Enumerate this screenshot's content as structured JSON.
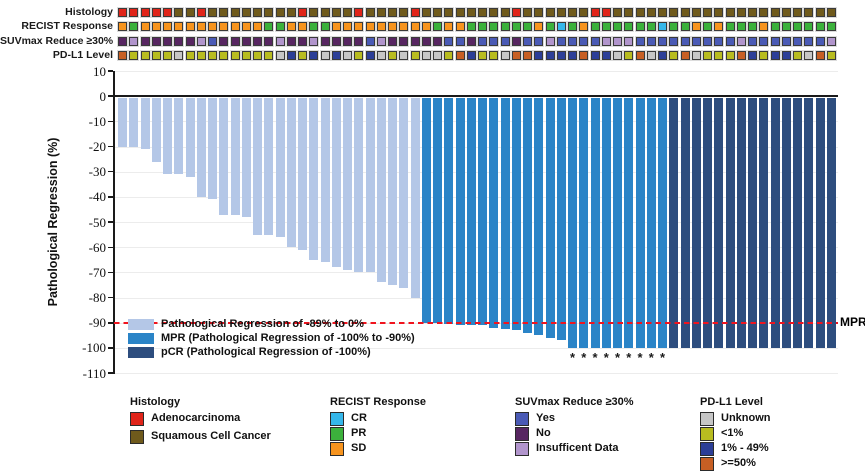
{
  "figure": {
    "y_axis_title": "Pathological Regression (%)",
    "mpr_label": "MPR",
    "asterisk_symbol": "*"
  },
  "colors": {
    "histology": {
      "A": "#e02419",
      "S": "#6f5a1c"
    },
    "recist": {
      "SD": "#f7941e",
      "PR": "#3cb13c",
      "CR": "#35b7ea"
    },
    "suvmax": {
      "Y": "#4a5ab5",
      "N": "#572661",
      "I": "#b195cc"
    },
    "pdl1": {
      "U": "#c6c6c6",
      "L": "#b8bc20",
      "M": "#2c3e97",
      "H": "#c75f24"
    },
    "bar_light": "#b4c7e7",
    "bar_mpr": "#2a84c7",
    "bar_pcr": "#2d4d7e",
    "mpr_line": "#f0141e",
    "grid": "#ececec",
    "axis": "#1a1a1a"
  },
  "tracks": {
    "rows": [
      {
        "label": "Histology",
        "key": "histology"
      },
      {
        "label": "RECIST Response",
        "key": "recist"
      },
      {
        "label": "SUVmax Reduce ≥30%",
        "key": "suvmax"
      },
      {
        "label": "PD-L1 Level",
        "key": "pdl1"
      }
    ],
    "histology": [
      "A",
      "A",
      "A",
      "A",
      "A",
      "S",
      "S",
      "A",
      "S",
      "S",
      "S",
      "S",
      "S",
      "S",
      "S",
      "S",
      "A",
      "S",
      "S",
      "S",
      "S",
      "A",
      "S",
      "S",
      "S",
      "S",
      "A",
      "S",
      "S",
      "S",
      "S",
      "S",
      "S",
      "S",
      "S",
      "A",
      "S",
      "S",
      "S",
      "S",
      "S",
      "S",
      "A",
      "A",
      "S",
      "S",
      "S",
      "S",
      "S",
      "S",
      "S",
      "S",
      "S",
      "S",
      "S",
      "S",
      "S",
      "S",
      "S",
      "S",
      "S",
      "S",
      "S",
      "S"
    ],
    "recist": [
      "SD",
      "PR",
      "SD",
      "SD",
      "SD",
      "SD",
      "SD",
      "SD",
      "SD",
      "SD",
      "SD",
      "SD",
      "SD",
      "PR",
      "PR",
      "SD",
      "SD",
      "PR",
      "PR",
      "SD",
      "SD",
      "SD",
      "SD",
      "SD",
      "SD",
      "SD",
      "SD",
      "SD",
      "PR",
      "SD",
      "SD",
      "PR",
      "PR",
      "PR",
      "PR",
      "PR",
      "PR",
      "SD",
      "PR",
      "CR",
      "PR",
      "SD",
      "PR",
      "PR",
      "PR",
      "PR",
      "PR",
      "PR",
      "CR",
      "PR",
      "PR",
      "SD",
      "PR",
      "SD",
      "PR",
      "PR",
      "PR",
      "SD",
      "PR",
      "PR",
      "PR",
      "PR",
      "PR",
      "PR"
    ],
    "suvmax": [
      "N",
      "I",
      "N",
      "N",
      "N",
      "N",
      "N",
      "I",
      "Y",
      "N",
      "N",
      "N",
      "N",
      "N",
      "I",
      "N",
      "N",
      "I",
      "N",
      "N",
      "N",
      "N",
      "Y",
      "I",
      "N",
      "N",
      "N",
      "N",
      "N",
      "Y",
      "Y",
      "N",
      "Y",
      "Y",
      "Y",
      "N",
      "Y",
      "Y",
      "I",
      "Y",
      "Y",
      "Y",
      "Y",
      "I",
      "I",
      "I",
      "Y",
      "Y",
      "Y",
      "Y",
      "Y",
      "Y",
      "Y",
      "Y",
      "Y",
      "I",
      "Y",
      "Y",
      "Y",
      "Y",
      "Y",
      "Y",
      "Y",
      "I"
    ],
    "pdl1": [
      "H",
      "L",
      "L",
      "L",
      "L",
      "U",
      "L",
      "L",
      "L",
      "L",
      "L",
      "L",
      "L",
      "L",
      "U",
      "M",
      "L",
      "M",
      "U",
      "M",
      "U",
      "L",
      "M",
      "U",
      "L",
      "U",
      "L",
      "U",
      "U",
      "L",
      "H",
      "M",
      "L",
      "L",
      "U",
      "H",
      "H",
      "M",
      "M",
      "M",
      "M",
      "H",
      "M",
      "M",
      "U",
      "L",
      "H",
      "U",
      "M",
      "L",
      "H",
      "U",
      "L",
      "L",
      "L",
      "H",
      "M",
      "L",
      "M",
      "M",
      "L",
      "U",
      "H",
      "L"
    ]
  },
  "chart_data": {
    "type": "bar",
    "title": "",
    "xlabel": "",
    "ylabel": "Pathological Regression (%)",
    "ylim": [
      -110,
      10
    ],
    "yticks": [
      10,
      0,
      -10,
      -20,
      -30,
      -40,
      -50,
      -60,
      -70,
      -80,
      -90,
      -100,
      -110
    ],
    "grid": "horizontal-light",
    "n_patients": 64,
    "values": [
      -20,
      -20,
      -21,
      -26,
      -31,
      -31,
      -32,
      -40,
      -41,
      -47,
      -47,
      -48,
      -55,
      -55,
      -56,
      -60,
      -61,
      -65,
      -66,
      -68,
      -69,
      -70,
      -70,
      -74,
      -75,
      -76,
      -80,
      -90,
      -90,
      -90.5,
      -91,
      -91,
      -91,
      -92,
      -92.5,
      -93,
      -94,
      -95,
      -96,
      -97,
      -100,
      -100,
      -100,
      -100,
      -100,
      -100,
      -100,
      -100,
      -100,
      -100,
      -100,
      -100,
      -100,
      -100,
      -100,
      -100,
      -100,
      -100,
      -100,
      -100,
      -100,
      -100,
      -100,
      -100
    ],
    "segments": {
      "light_count": 27,
      "mpr_count": 22,
      "pcr_count": 15
    },
    "asterisk_bars": [
      41,
      42,
      43,
      44,
      45,
      46,
      47,
      48,
      49
    ],
    "reference_line": {
      "y": -90,
      "label": "MPR",
      "style": "dashed-red"
    },
    "series_legend": [
      {
        "label": "Pathological Regression of -89% to 0%",
        "color_key": "bar_light"
      },
      {
        "label": "MPR (Pathological Regression of -100% to -90%)",
        "color_key": "bar_mpr"
      },
      {
        "label": "pCR (Pathological Regression of -100%)",
        "color_key": "bar_pcr"
      }
    ]
  },
  "bottom_legend": [
    {
      "title": "Histology",
      "items": [
        {
          "label": "Adenocarcinoma",
          "group": "histology",
          "code": "A"
        },
        {
          "label": "Squamous Cell Cancer",
          "group": "histology",
          "code": "S"
        }
      ]
    },
    {
      "title": "RECIST Response",
      "items": [
        {
          "label": "CR",
          "group": "recist",
          "code": "CR"
        },
        {
          "label": "PR",
          "group": "recist",
          "code": "PR"
        },
        {
          "label": "SD",
          "group": "recist",
          "code": "SD"
        }
      ]
    },
    {
      "title": "SUVmax Reduce ≥30%",
      "items": [
        {
          "label": "Yes",
          "group": "suvmax",
          "code": "Y"
        },
        {
          "label": "No",
          "group": "suvmax",
          "code": "N"
        },
        {
          "label": "Insufficent Data",
          "group": "suvmax",
          "code": "I"
        }
      ]
    },
    {
      "title": "PD-L1 Level",
      "items": [
        {
          "label": "Unknown",
          "group": "pdl1",
          "code": "U"
        },
        {
          "label": "<1%",
          "group": "pdl1",
          "code": "L"
        },
        {
          "label": "1% - 49%",
          "group": "pdl1",
          "code": "M"
        },
        {
          "label": ">=50%",
          "group": "pdl1",
          "code": "H"
        }
      ]
    }
  ]
}
